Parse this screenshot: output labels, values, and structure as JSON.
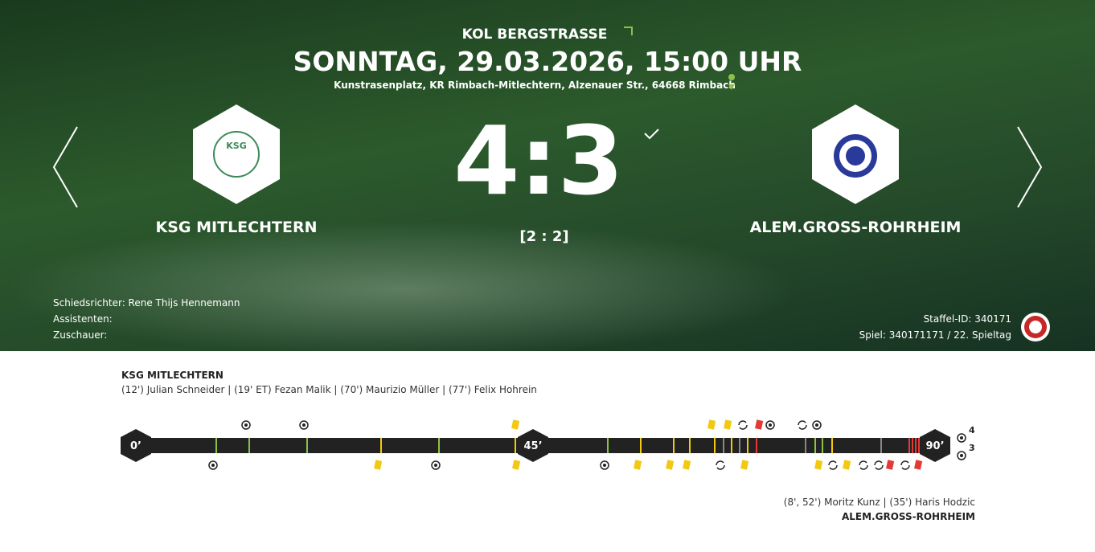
{
  "header": {
    "competition": "KOL BERGSTRASSE",
    "datetime": "SONNTAG, 29.03.2026, 15:00 UHR",
    "venue": "Kunstrasenplatz, KR Rimbach-Mitlechtern, Alzenauer Str., 64668 Rimbach"
  },
  "match": {
    "home": {
      "name": "KSG MITLECHTERN",
      "logo_text": "KSG"
    },
    "away": {
      "name": "ALEM.GROSS-ROHRHEIM"
    },
    "score": "4:3",
    "halftime": "[2 : 2]"
  },
  "officials": {
    "referee": "Schiedsrichter: Rene Thijs Hennemann",
    "assistants": "Assistenten:",
    "spectators": "Zuschauer:"
  },
  "info": {
    "staffel": "Staffel-ID: 340171",
    "game": "Spiel: 340171171 / 22. Spieltag"
  },
  "timeline": {
    "home_name": "KSG MITLECHTERN",
    "home_scorers": "(12') Julian Schneider | (19' ET) Fezan Malik | (70') Maurizio Müller | (77') Felix Hohrein",
    "away_scorers": "(8', 52') Moritz Kunz | (35') Haris Hodzic",
    "away_name": "ALEM.GROSS-ROHRHEIM",
    "start": "0’",
    "half": "45’",
    "end": "90’",
    "home_goals": 4,
    "away_goals": 3
  }
}
